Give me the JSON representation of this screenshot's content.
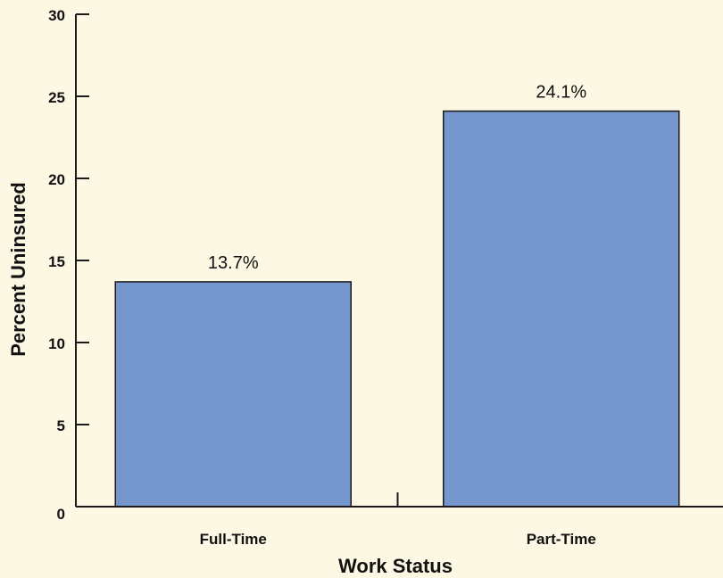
{
  "chart_data": {
    "type": "bar",
    "categories": [
      "Full-Time",
      "Part-Time"
    ],
    "values": [
      13.7,
      24.1
    ],
    "data_labels": [
      "13.7%",
      "24.1%"
    ],
    "xlabel": "Work Status",
    "ylabel": "Percent Uninsured",
    "ylim": [
      0,
      30
    ],
    "yticks": [
      "0",
      "5",
      "10",
      "15",
      "20",
      "25",
      "30"
    ],
    "grid": false,
    "legend": "none",
    "colors": {
      "bar_fill": "#7596cc",
      "bar_stroke": "#1a1a1a",
      "background": "#fdf8e4",
      "axis": "#1a1a1a"
    }
  }
}
